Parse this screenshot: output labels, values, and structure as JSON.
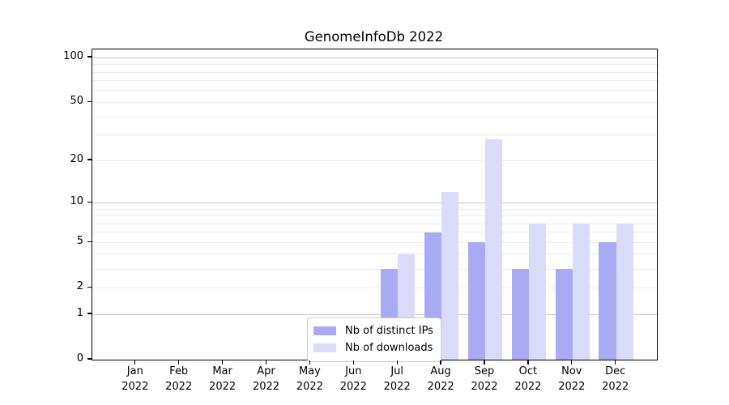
{
  "chart": {
    "title": "GenomeInfoDb 2022"
  },
  "chart_data": {
    "type": "bar",
    "title": "GenomeInfoDb 2022",
    "categories": [
      "Jan 2022",
      "Feb 2022",
      "Mar 2022",
      "Apr 2022",
      "May 2022",
      "Jun 2022",
      "Jul 2022",
      "Aug 2022",
      "Sep 2022",
      "Oct 2022",
      "Nov 2022",
      "Dec 2022"
    ],
    "series": [
      {
        "name": "Nb of distinct IPs",
        "color": "#a9a9f4",
        "values": [
          0,
          0,
          0,
          0,
          0,
          0,
          3,
          6,
          5,
          3,
          3,
          5
        ]
      },
      {
        "name": "Nb of downloads",
        "color": "#dadaf9",
        "values": [
          0,
          0,
          0,
          0,
          0,
          0,
          4,
          12,
          28,
          7,
          7,
          7
        ]
      }
    ],
    "yscale": "log1p",
    "ylim": [
      0,
      113
    ],
    "ytick_values": [
      0,
      1,
      2,
      5,
      10,
      20,
      50,
      100
    ],
    "ytick_labels": [
      "0",
      "1",
      "2",
      "5",
      "10",
      "20",
      "50",
      "100"
    ],
    "major_gridline_values": [
      1,
      10,
      100
    ],
    "minor_gridline_values": [
      2,
      3,
      4,
      5,
      6,
      7,
      8,
      9,
      20,
      30,
      40,
      50,
      60,
      70,
      80,
      90
    ],
    "grid": true,
    "legend_position": "lower center",
    "xlabel": "",
    "ylabel": ""
  }
}
